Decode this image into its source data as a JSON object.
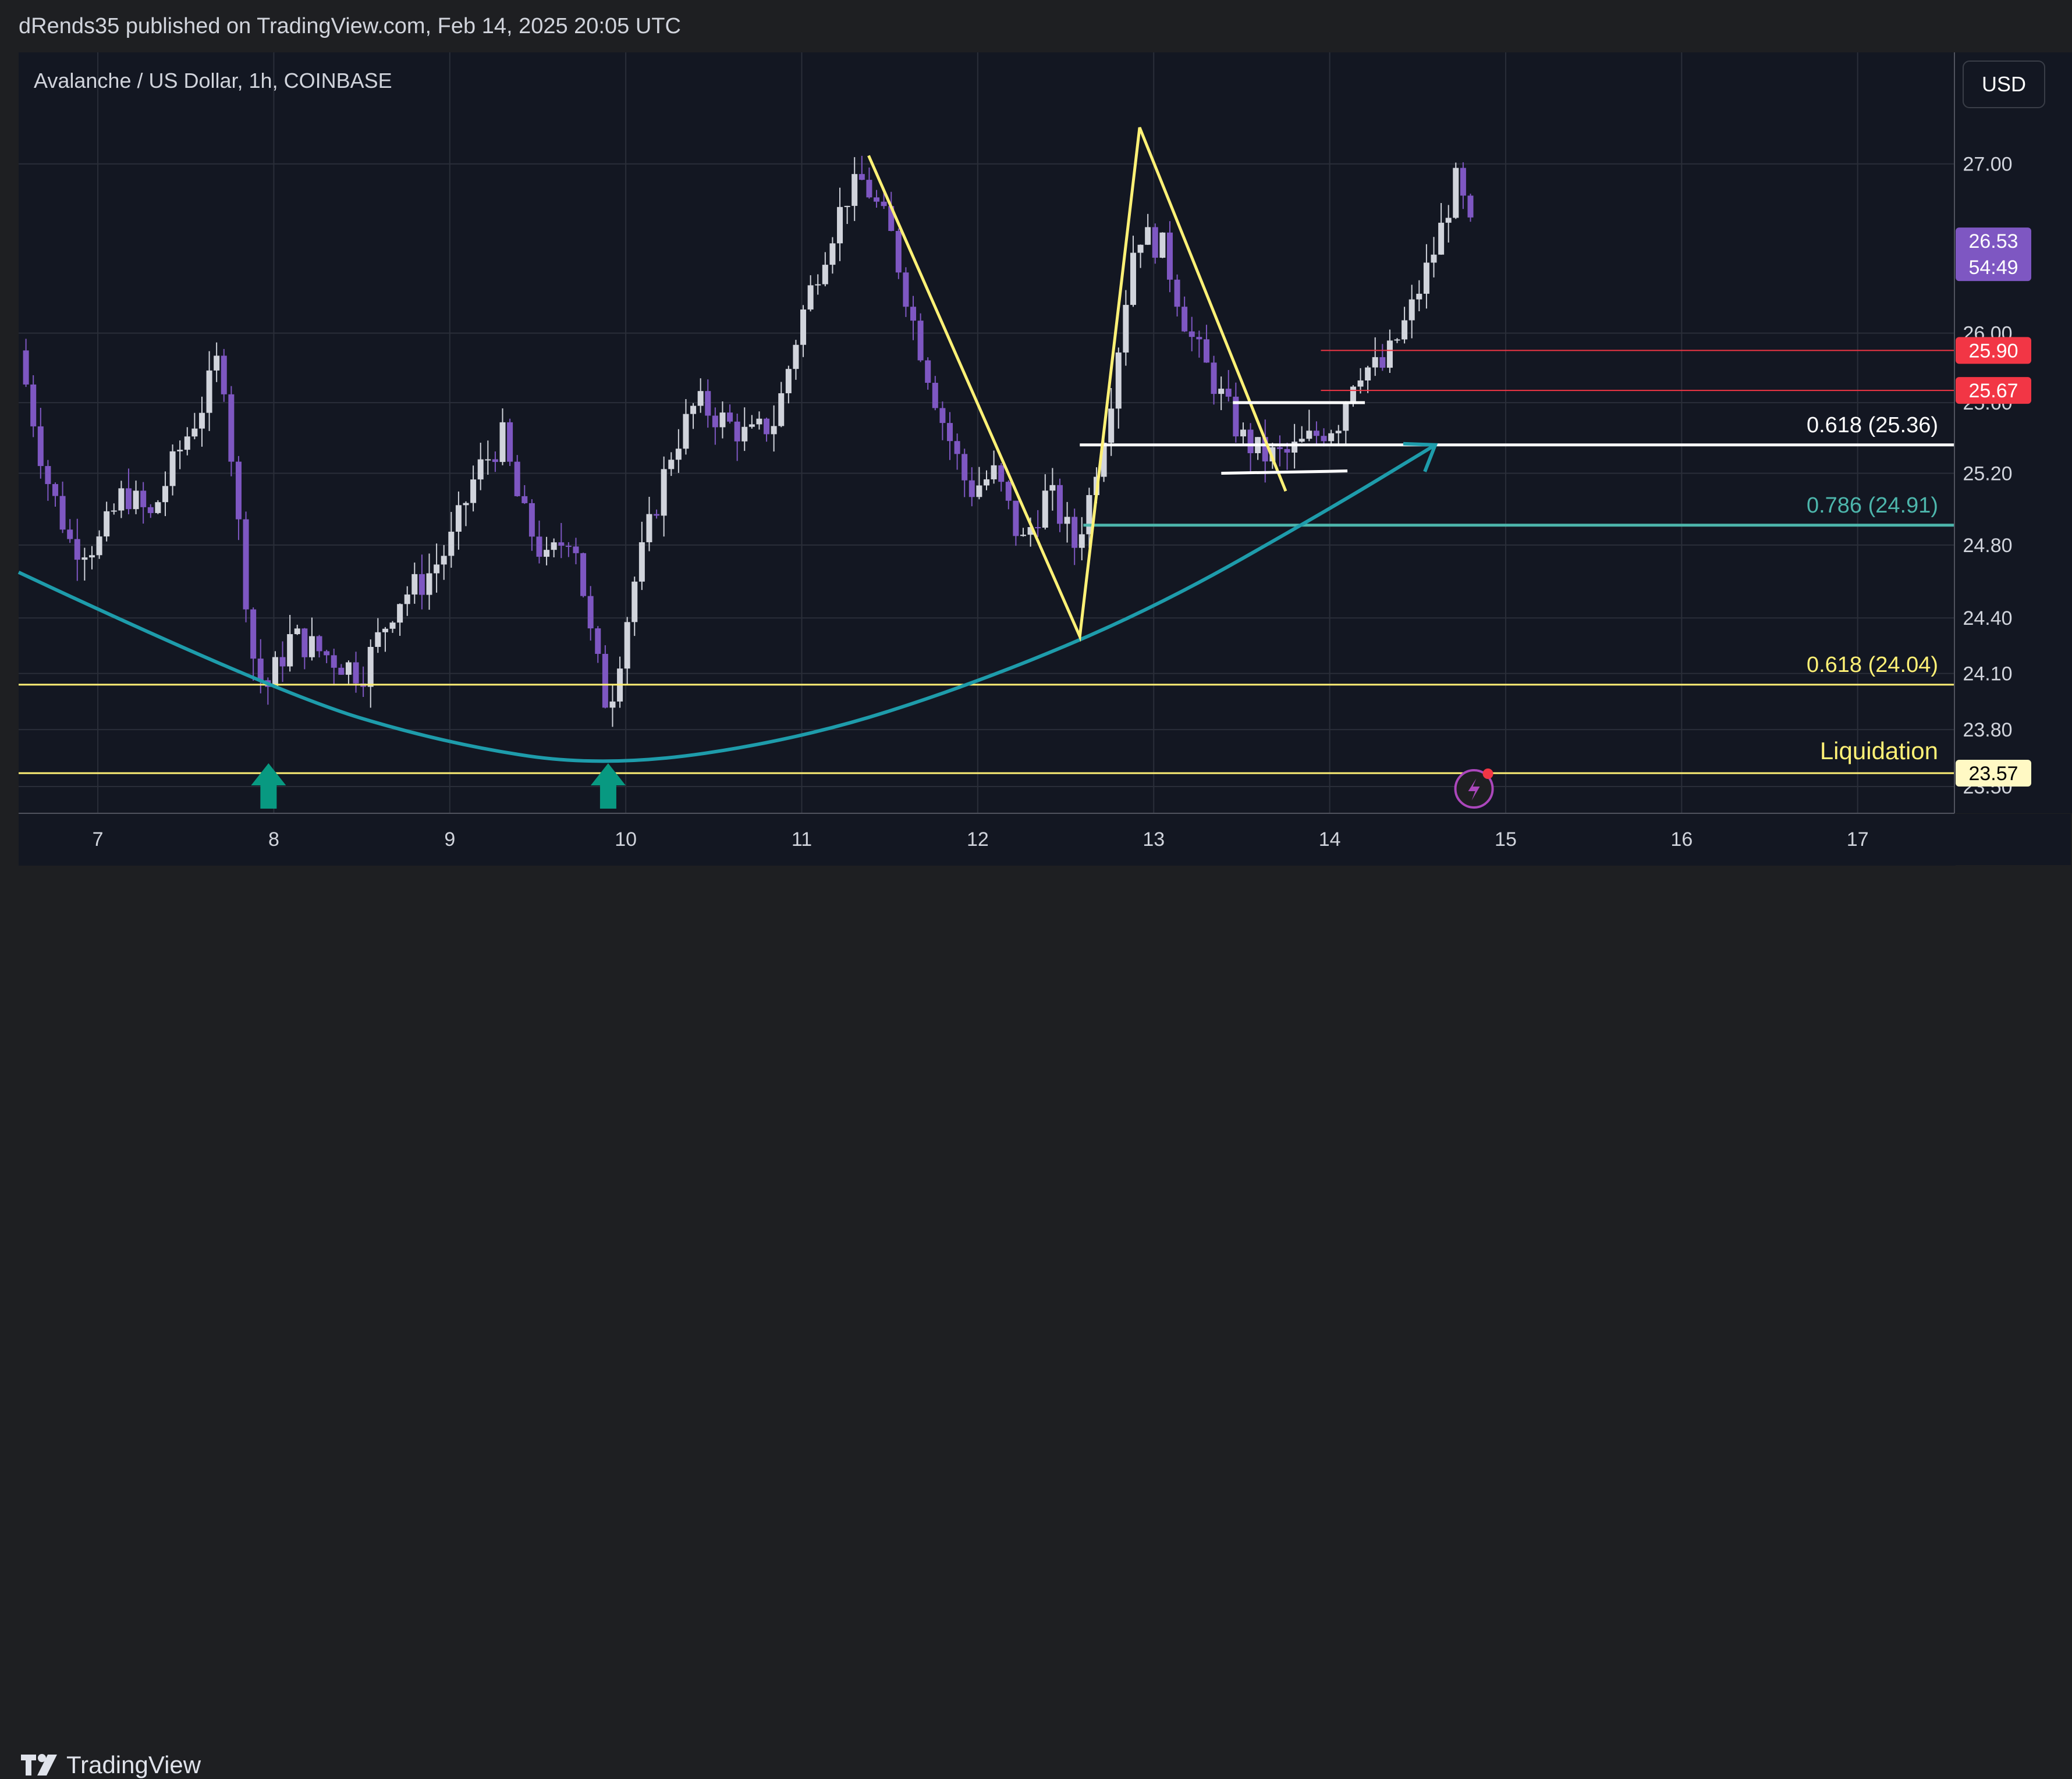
{
  "header": {
    "publish_line": "dRends35 published on TradingView.com, Feb 14, 2025 20:05 UTC"
  },
  "ticker": {
    "label": "Avalanche / US Dollar, 1h, COINBASE"
  },
  "currency_button": {
    "label": "USD"
  },
  "footer": {
    "brand": "TradingView"
  },
  "colors": {
    "background": "#131722",
    "grid": "#2a2e39",
    "candle": "#d1d4dc",
    "candle_down": "#7e57c2",
    "yellow": "#fff176",
    "teal": "#1e9cab",
    "red": "#f23645",
    "arrow_green": "#089981"
  },
  "chart_data": {
    "type": "candlestick",
    "title": "Avalanche / US Dollar, 1h, COINBASE",
    "x_tick_labels": [
      "7",
      "8",
      "9",
      "10",
      "11",
      "12",
      "13",
      "14",
      "15",
      "16",
      "17"
    ],
    "y_tick_labels": [
      "27.00",
      "26.00",
      "25.60",
      "25.20",
      "24.80",
      "24.40",
      "24.10",
      "23.80",
      "23.50"
    ],
    "y_ticks": [
      27.0,
      26.0,
      25.6,
      25.2,
      24.8,
      24.4,
      24.1,
      23.8,
      23.5
    ],
    "ylim": [
      23.36,
      27.68
    ],
    "xlim": [
      6.55,
      17.55
    ],
    "y_scale": "log",
    "price_series_x": [
      6.55,
      6.7,
      6.85,
      7.0,
      7.15,
      7.3,
      7.45,
      7.6,
      7.7,
      7.8,
      7.88,
      7.95,
      8.1,
      8.3,
      8.5,
      8.7,
      8.85,
      9.0,
      9.15,
      9.3,
      9.4,
      9.55,
      9.7,
      9.8,
      9.9,
      10.05,
      10.25,
      10.4,
      10.55,
      10.7,
      10.85,
      11.0,
      11.1,
      11.25,
      11.35,
      11.5,
      11.65,
      11.8,
      11.95,
      12.1,
      12.25,
      12.4,
      12.55,
      12.62,
      12.75,
      12.9,
      13.05,
      13.2,
      13.35,
      13.5,
      13.62,
      13.75,
      13.9,
      14.05,
      14.15,
      14.3,
      14.45,
      14.6,
      14.72,
      14.82
    ],
    "price_series_y": [
      25.9,
      25.2,
      24.8,
      24.8,
      25.1,
      24.95,
      25.3,
      25.6,
      25.9,
      24.9,
      24.2,
      24.0,
      24.3,
      24.2,
      24.1,
      24.5,
      24.6,
      24.8,
      25.2,
      25.4,
      25.0,
      24.7,
      24.9,
      24.3,
      23.9,
      24.6,
      25.3,
      25.6,
      25.5,
      25.4,
      25.5,
      26.1,
      26.4,
      26.8,
      26.9,
      26.6,
      26.0,
      25.5,
      25.1,
      25.2,
      24.8,
      25.1,
      24.8,
      25.0,
      25.6,
      26.6,
      26.5,
      26.0,
      25.7,
      25.4,
      25.3,
      25.3,
      25.4,
      25.5,
      25.8,
      25.8,
      26.1,
      26.5,
      26.9,
      26.53
    ],
    "levels": [
      {
        "label": "0.618 (25.36)",
        "value": 25.36,
        "color": "#ffffff"
      },
      {
        "label": "0.786 (24.91)",
        "value": 24.91,
        "color": "#4db6ac"
      },
      {
        "label": "0.618 (24.04)",
        "value": 24.04,
        "color": "#fff176"
      },
      {
        "label": "Liquidation",
        "value": 23.57,
        "color": "#fff176"
      }
    ],
    "price_tags": [
      {
        "label": "26.53",
        "sub": "54:49",
        "value": 26.53,
        "color": "#7e57c2"
      },
      {
        "label": "25.90",
        "value": 25.9,
        "color": "#f23645"
      },
      {
        "label": "25.67",
        "value": 25.67,
        "color": "#f23645"
      },
      {
        "label": "23.57",
        "value": 23.57,
        "color": "#fff9c4",
        "text_color": "#000000"
      }
    ],
    "red_lines": [
      25.9,
      25.67
    ],
    "zigzag_x": [
      11.38,
      12.58,
      12.92,
      13.75
    ],
    "zigzag_y": [
      27.05,
      24.3,
      27.22,
      25.1
    ],
    "arc_points": [
      [
        6.55,
        24.65
      ],
      [
        8.0,
        24.0
      ],
      [
        9.0,
        23.72
      ],
      [
        9.9,
        23.6
      ],
      [
        11.0,
        23.75
      ],
      [
        12.0,
        24.05
      ],
      [
        13.0,
        24.45
      ],
      [
        14.0,
        25.0
      ],
      [
        14.6,
        25.36
      ]
    ],
    "arrows_up_x": [
      7.97,
      9.9
    ],
    "white_box_x": [
      13.45,
      14.2
    ],
    "white_box_y": [
      25.6,
      25.2
    ]
  }
}
